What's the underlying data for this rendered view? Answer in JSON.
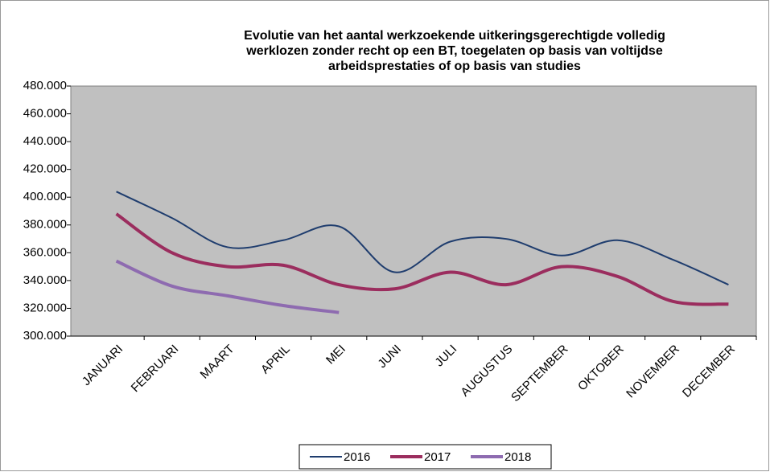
{
  "chart_data": {
    "type": "line",
    "title": [
      "Evolutie van het aantal werkzoekende uitkeringsgerechtigde volledig",
      "werklozen  zonder recht op een BT, toegelaten op basis van voltijdse",
      "arbeidsprestaties of op basis van studies"
    ],
    "categories": [
      "JANUARI",
      "FEBRUARI",
      "MAART",
      "APRIL",
      "MEI",
      "JUNI",
      "JULI",
      "AUGUSTUS",
      "SEPTEMBER",
      "OKTOBER",
      "NOVEMBER",
      "DECEMBER"
    ],
    "series": [
      {
        "name": "2016",
        "color": "#1f3d6e",
        "values": [
          404000,
          385000,
          364000,
          369000,
          379000,
          346000,
          368000,
          370000,
          358000,
          369000,
          355000,
          337000
        ]
      },
      {
        "name": "2017",
        "color": "#9b2d5e",
        "values": [
          388000,
          360000,
          350000,
          351000,
          337000,
          334000,
          346000,
          337000,
          350000,
          343000,
          325000,
          323000
        ]
      },
      {
        "name": "2018",
        "color": "#8e6bb0",
        "values": [
          354000,
          336000,
          329000,
          322000,
          317000,
          null,
          null,
          null,
          null,
          null,
          null,
          null
        ]
      }
    ],
    "ylim": [
      300000,
      480000
    ],
    "yticks": [
      {
        "value": 300000,
        "label": "300.000"
      },
      {
        "value": 320000,
        "label": "320.000"
      },
      {
        "value": 340000,
        "label": "340.000"
      },
      {
        "value": 360000,
        "label": "360.000"
      },
      {
        "value": 380000,
        "label": "380.000"
      },
      {
        "value": 400000,
        "label": "400.000"
      },
      {
        "value": 420000,
        "label": "420.000"
      },
      {
        "value": 440000,
        "label": "440.000"
      },
      {
        "value": 460000,
        "label": "460.000"
      },
      {
        "value": 480000,
        "label": "480.000"
      }
    ],
    "grid": false,
    "legend": "bottom",
    "plot_background": "#c0c0c0"
  }
}
